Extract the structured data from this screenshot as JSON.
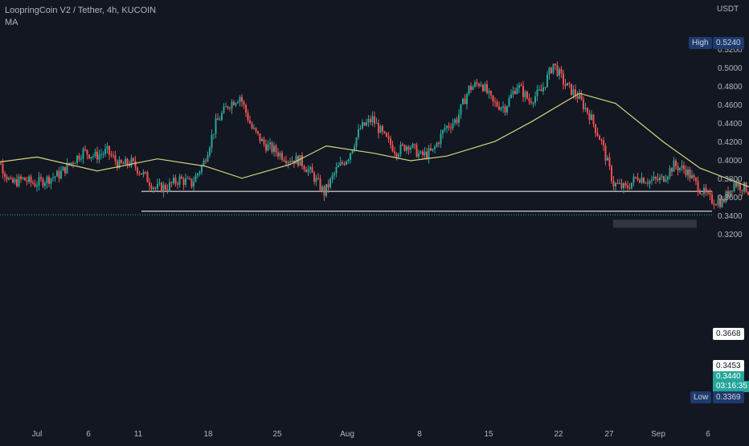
{
  "legend": {
    "symbol_line": "LoopringCoin V2 / Tether, 4h, KUCOIN",
    "indicator": "MA"
  },
  "currency": "USDT",
  "high_tag": {
    "label": "High",
    "value": "0.5240"
  },
  "low_tag": {
    "label": "Low",
    "value": "0.3369"
  },
  "level_tags": [
    "0.3668",
    "0.3453"
  ],
  "last_price_tag": "0.3440",
  "countdown": "03:16:35",
  "colors": {
    "background": "#131722",
    "up": "#26a69a",
    "down": "#ef5350",
    "ma": "#d4d67a",
    "axis_text": "#b2b5be",
    "level_line": "#ffffff"
  },
  "chart_data": {
    "type": "line",
    "title": "LoopringCoin V2 / Tether, 4h, KUCOIN",
    "xlabel": "",
    "ylabel": "",
    "ylim": [
      0.32,
      0.53
    ],
    "grid": false,
    "x_tick_labels": [
      "Jul",
      "6",
      "11",
      "18",
      "25",
      "Aug",
      "8",
      "15",
      "22",
      "27",
      "Sep",
      "6"
    ],
    "y_tick_labels": [
      "0.3200",
      "0.3400",
      "0.3600",
      "0.3800",
      "0.4000",
      "0.4200",
      "0.4400",
      "0.4600",
      "0.4800",
      "0.5000",
      "0.5200"
    ],
    "series": [
      {
        "name": "",
        "kind": "candlestick-close",
        "x": [
          "Jun 27",
          "Jun 28",
          "Jun 29",
          "Jun 30",
          "Jul 1",
          "Jul 2",
          "Jul 3",
          "Jul 4",
          "Jul 5",
          "Jul 6",
          "Jul 7",
          "Jul 8",
          "Jul 9",
          "Jul 10",
          "Jul 11",
          "Jul 12",
          "Jul 13",
          "Jul 14",
          "Jul 15",
          "Jul 16",
          "Jul 17",
          "Jul 18",
          "Jul 19",
          "Jul 20",
          "Jul 21",
          "Jul 22",
          "Jul 23",
          "Jul 24",
          "Jul 25",
          "Jul 26",
          "Jul 27",
          "Jul 28",
          "Jul 29",
          "Jul 30",
          "Jul 31",
          "Aug 1",
          "Aug 2",
          "Aug 3",
          "Aug 4",
          "Aug 5",
          "Aug 6",
          "Aug 7",
          "Aug 8",
          "Aug 9",
          "Aug 10",
          "Aug 11",
          "Aug 12",
          "Aug 13",
          "Aug 14",
          "Aug 15",
          "Aug 16",
          "Aug 17",
          "Aug 18",
          "Aug 19",
          "Aug 20",
          "Aug 21",
          "Aug 22",
          "Aug 23",
          "Aug 24",
          "Aug 25",
          "Aug 26",
          "Aug 27",
          "Aug 28",
          "Aug 29",
          "Aug 30",
          "Aug 31",
          "Sep 1"
        ],
        "values": [
          0.425,
          0.4,
          0.375,
          0.38,
          0.375,
          0.38,
          0.385,
          0.398,
          0.41,
          0.405,
          0.41,
          0.395,
          0.398,
          0.385,
          0.37,
          0.372,
          0.38,
          0.375,
          0.398,
          0.44,
          0.46,
          0.47,
          0.435,
          0.418,
          0.41,
          0.402,
          0.4,
          0.385,
          0.365,
          0.39,
          0.405,
          0.435,
          0.445,
          0.425,
          0.41,
          0.418,
          0.405,
          0.41,
          0.435,
          0.445,
          0.478,
          0.485,
          0.462,
          0.458,
          0.482,
          0.465,
          0.475,
          0.505,
          0.482,
          0.47,
          0.45,
          0.42,
          0.375,
          0.37,
          0.383,
          0.378,
          0.38,
          0.395,
          0.39,
          0.372,
          0.358,
          0.355,
          0.376,
          0.37,
          0.355,
          0.345,
          0.344
        ]
      },
      {
        "name": "MA",
        "x": [
          "Jun 27",
          "Jul 1",
          "Jul 6",
          "Jul 11",
          "Jul 15",
          "Jul 18",
          "Jul 22",
          "Jul 25",
          "Jul 29",
          "Aug 1",
          "Aug 4",
          "Aug 8",
          "Aug 11",
          "Aug 15",
          "Aug 18",
          "Aug 22",
          "Aug 25",
          "Aug 29",
          "Aug 31"
        ],
        "values": [
          0.397,
          0.404,
          0.389,
          0.402,
          0.394,
          0.381,
          0.396,
          0.416,
          0.408,
          0.4,
          0.405,
          0.421,
          0.442,
          0.473,
          0.462,
          0.42,
          0.392,
          0.372,
          0.365
        ]
      }
    ],
    "levels": [
      0.3668,
      0.3453
    ],
    "high": 0.524,
    "low": 0.3369,
    "last_price": 0.344
  }
}
